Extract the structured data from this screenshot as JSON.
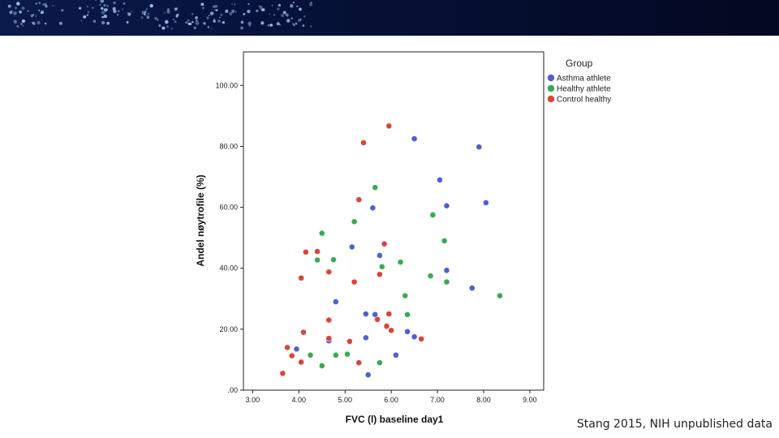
{
  "banner": {
    "background_color": "#06123a",
    "dot_color": "#a9c4f0"
  },
  "chart_data": {
    "type": "scatter",
    "xlabel": "FVC (l) baseline day1",
    "ylabel": "Andel nøytrofile (%)",
    "xlim": [
      2.8,
      9.3
    ],
    "ylim": [
      0,
      111
    ],
    "x_ticks": [
      3,
      4,
      5,
      6,
      7,
      8,
      9
    ],
    "x_tick_labels": [
      "3.00",
      "4.00",
      "5.00",
      "6.00",
      "7.00",
      "8.00",
      "9.00"
    ],
    "y_ticks": [
      0,
      20,
      40,
      60,
      80,
      100
    ],
    "y_tick_labels": [
      ".00",
      "20.00",
      "40.00",
      "60.00",
      "80.00",
      "100.00"
    ],
    "grid": false,
    "legend": {
      "title": "Group",
      "placement": "right"
    },
    "series": [
      {
        "name": "Asthma athlete",
        "color": "#4f60d0",
        "points": [
          [
            6.5,
            82.5
          ],
          [
            7.9,
            79.8
          ],
          [
            7.05,
            69
          ],
          [
            7.2,
            60.5
          ],
          [
            8.05,
            61.5
          ],
          [
            5.6,
            59.8
          ],
          [
            5.15,
            47
          ],
          [
            5.75,
            44.2
          ],
          [
            7.2,
            39.3
          ],
          [
            7.75,
            33.5
          ],
          [
            4.8,
            29
          ],
          [
            5.45,
            25
          ],
          [
            5.65,
            24.8
          ],
          [
            6.35,
            19.2
          ],
          [
            6.5,
            17.5
          ],
          [
            5.45,
            17.2
          ],
          [
            4.65,
            16.2
          ],
          [
            3.95,
            13.5
          ],
          [
            6.1,
            11.5
          ],
          [
            5.5,
            5
          ]
        ]
      },
      {
        "name": "Healthy athlete",
        "color": "#3aaa55",
        "points": [
          [
            5.65,
            66.5
          ],
          [
            5.2,
            55.3
          ],
          [
            6.9,
            57.5
          ],
          [
            4.5,
            51.5
          ],
          [
            7.15,
            49
          ],
          [
            4.4,
            42.7
          ],
          [
            4.75,
            42.8
          ],
          [
            6.2,
            42
          ],
          [
            5.8,
            40.5
          ],
          [
            6.85,
            37.5
          ],
          [
            7.2,
            35.5
          ],
          [
            6.3,
            31
          ],
          [
            8.35,
            31
          ],
          [
            6.35,
            24.8
          ],
          [
            4.25,
            11.5
          ],
          [
            4.8,
            11.5
          ],
          [
            5.05,
            11.8
          ],
          [
            5.75,
            9
          ],
          [
            4.5,
            8
          ]
        ]
      },
      {
        "name": "Control healthy",
        "color": "#d8463a",
        "points": [
          [
            5.95,
            86.7
          ],
          [
            5.4,
            81.2
          ],
          [
            5.3,
            62.5
          ],
          [
            5.85,
            48
          ],
          [
            4.15,
            45.3
          ],
          [
            4.4,
            45.5
          ],
          [
            4.65,
            38.8
          ],
          [
            5.75,
            38
          ],
          [
            4.05,
            36.8
          ],
          [
            5.2,
            35.5
          ],
          [
            5.95,
            25
          ],
          [
            4.65,
            23
          ],
          [
            5.7,
            23.2
          ],
          [
            5.9,
            21
          ],
          [
            6.0,
            19.6
          ],
          [
            4.1,
            19
          ],
          [
            4.65,
            17
          ],
          [
            5.1,
            16
          ],
          [
            6.65,
            16.8
          ],
          [
            3.75,
            14
          ],
          [
            3.85,
            11.3
          ],
          [
            4.05,
            9.2
          ],
          [
            5.3,
            9
          ],
          [
            3.65,
            5.5
          ]
        ]
      }
    ]
  },
  "legend_labels": [
    "Asthma athlete",
    "Healthy athlete",
    "Control healthy"
  ],
  "source_note": "Stang 2015, NIH unpublished data"
}
